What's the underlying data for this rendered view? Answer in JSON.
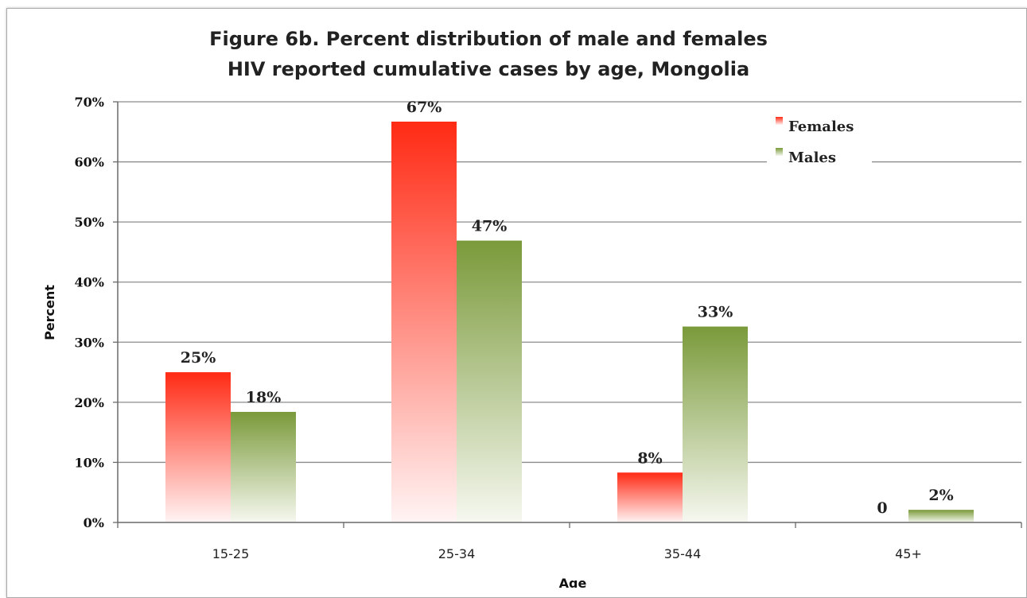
{
  "chart_data": {
    "type": "bar",
    "title": [
      "Figure 6b. Percent distribution of male and females",
      "HIV reported cumulative cases by age, Mongolia"
    ],
    "xlabel": "Age",
    "ylabel": "Percent",
    "categories": [
      "15-25",
      "25-34",
      "35-44",
      "45+"
    ],
    "ylim": [
      0,
      70
    ],
    "yticks": [
      0,
      10,
      20,
      30,
      40,
      50,
      60,
      70
    ],
    "ytick_labels": [
      "0%",
      "10%",
      "20%",
      "30%",
      "40%",
      "50%",
      "60%",
      "70%"
    ],
    "grid": true,
    "legend_position": "top-right",
    "series": [
      {
        "name": "Females",
        "color": "#ff2a14",
        "values": [
          25,
          66.7,
          8.3,
          0
        ],
        "labels": [
          "25%",
          "67%",
          "8%",
          "0"
        ]
      },
      {
        "name": "Males",
        "color": "#7a9a3a",
        "values": [
          18.4,
          46.9,
          32.6,
          2.1
        ],
        "labels": [
          "18%",
          "47%",
          "33%",
          "2%"
        ]
      }
    ]
  }
}
